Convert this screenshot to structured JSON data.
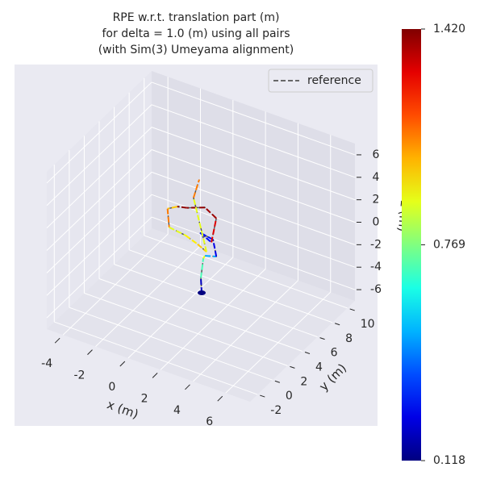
{
  "chart_data": {
    "type": "line3d",
    "title": "RPE w.r.t. translation part (m)\nfor delta = 1.0 (m) using all pairs\n(with Sim(3) Umeyama alignment)",
    "xlabel": "x (m)",
    "ylabel": "y (m)",
    "zlabel": "z (m)",
    "x": [
      1.3,
      1.25,
      1.4,
      1.5,
      2.2,
      2.0,
      1.2,
      1.9,
      2.2,
      1.5,
      0.4,
      -0.2,
      -0.8,
      -0.7,
      0.3,
      1.05,
      1.6,
      0.8,
      1.15
    ],
    "y": [
      4,
      4,
      4,
      4,
      4,
      4,
      4,
      4,
      4,
      4,
      4,
      4,
      4,
      4,
      4,
      4,
      4,
      4,
      4
    ],
    "z": [
      -5.0,
      -3.7,
      -1.9,
      -1.6,
      -1.3,
      0.1,
      0.3,
      -0.2,
      2.1,
      2.7,
      2.1,
      1.9,
      1.4,
      -0.2,
      -0.4,
      -0.8,
      -1.2,
      3.2,
      5.0
    ],
    "values": [
      0.2,
      0.7,
      0.9,
      0.5,
      0.25,
      0.3,
      0.3,
      1.3,
      1.38,
      1.4,
      1.4,
      1.0,
      1.1,
      0.9,
      0.95,
      1.0,
      0.9,
      1.1,
      0.8
    ],
    "legend": "reference",
    "reference_color": "#555555",
    "xlim": [
      -5,
      7.5
    ],
    "ylim": [
      -3,
      11
    ],
    "zlim": [
      -7,
      7
    ],
    "xticks": [
      -4,
      -2,
      0,
      2,
      4,
      6
    ],
    "yticks": [
      -2,
      0,
      2,
      4,
      6,
      8,
      10
    ],
    "zticks": [
      -6,
      -4,
      -2,
      0,
      2,
      4,
      6
    ],
    "clim": [
      0.118,
      1.42
    ],
    "cticks": [
      0.118,
      0.769,
      {
        "value": 1.42,
        "label": "1.420"
      }
    ],
    "colormap": "jet",
    "grid": true
  }
}
